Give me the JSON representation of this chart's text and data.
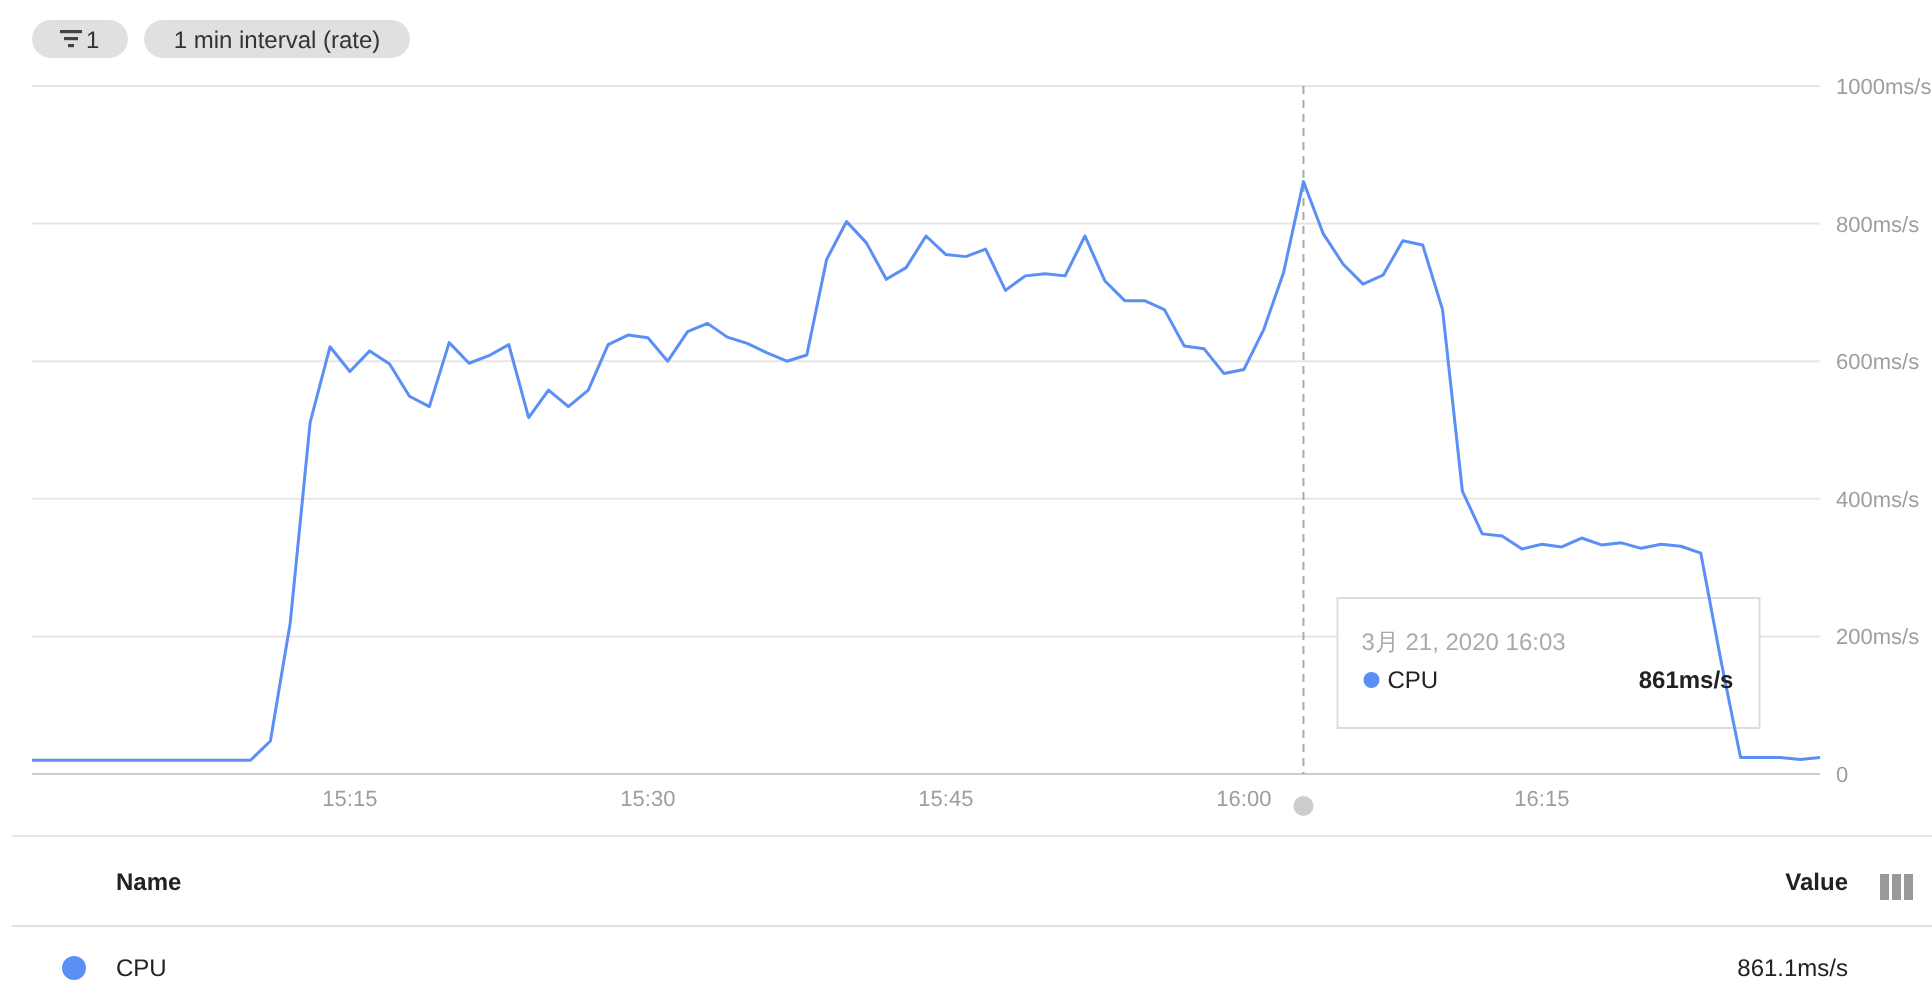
{
  "chart_data": {
    "type": "line",
    "x": [
      "2020-03-21T14:59",
      "2020-03-21T15:00",
      "2020-03-21T15:01",
      "2020-03-21T15:02",
      "2020-03-21T15:03",
      "2020-03-21T15:04",
      "2020-03-21T15:05",
      "2020-03-21T15:06",
      "2020-03-21T15:07",
      "2020-03-21T15:08",
      "2020-03-21T15:09",
      "2020-03-21T15:10",
      "2020-03-21T15:11",
      "2020-03-21T15:12",
      "2020-03-21T15:13",
      "2020-03-21T15:14",
      "2020-03-21T15:15",
      "2020-03-21T15:16",
      "2020-03-21T15:17",
      "2020-03-21T15:18",
      "2020-03-21T15:19",
      "2020-03-21T15:20",
      "2020-03-21T15:21",
      "2020-03-21T15:22",
      "2020-03-21T15:23",
      "2020-03-21T15:24",
      "2020-03-21T15:25",
      "2020-03-21T15:26",
      "2020-03-21T15:27",
      "2020-03-21T15:28",
      "2020-03-21T15:29",
      "2020-03-21T15:30",
      "2020-03-21T15:31",
      "2020-03-21T15:32",
      "2020-03-21T15:33",
      "2020-03-21T15:34",
      "2020-03-21T15:35",
      "2020-03-21T15:36",
      "2020-03-21T15:37",
      "2020-03-21T15:38",
      "2020-03-21T15:39",
      "2020-03-21T15:40",
      "2020-03-21T15:41",
      "2020-03-21T15:42",
      "2020-03-21T15:43",
      "2020-03-21T15:44",
      "2020-03-21T15:45",
      "2020-03-21T15:46",
      "2020-03-21T15:47",
      "2020-03-21T15:48",
      "2020-03-21T15:49",
      "2020-03-21T15:50",
      "2020-03-21T15:51",
      "2020-03-21T15:52",
      "2020-03-21T15:53",
      "2020-03-21T15:54",
      "2020-03-21T15:55",
      "2020-03-21T15:56",
      "2020-03-21T15:57",
      "2020-03-21T15:58",
      "2020-03-21T15:59",
      "2020-03-21T16:00",
      "2020-03-21T16:01",
      "2020-03-21T16:02",
      "2020-03-21T16:03",
      "2020-03-21T16:04",
      "2020-03-21T16:05",
      "2020-03-21T16:06",
      "2020-03-21T16:07",
      "2020-03-21T16:08",
      "2020-03-21T16:09",
      "2020-03-21T16:10",
      "2020-03-21T16:11",
      "2020-03-21T16:12",
      "2020-03-21T16:13",
      "2020-03-21T16:14",
      "2020-03-21T16:15",
      "2020-03-21T16:16",
      "2020-03-21T16:17",
      "2020-03-21T16:18",
      "2020-03-21T16:19",
      "2020-03-21T16:20",
      "2020-03-21T16:21",
      "2020-03-21T16:22",
      "2020-03-21T16:23",
      "2020-03-21T16:24",
      "2020-03-21T16:25",
      "2020-03-21T16:26",
      "2020-03-21T16:27",
      "2020-03-21T16:28",
      "2020-03-21T16:29"
    ],
    "series": [
      {
        "name": "CPU",
        "color": "#5b8ff5",
        "values": [
          20,
          20,
          20,
          20,
          20,
          20,
          20,
          20,
          20,
          20,
          20,
          20,
          48,
          220,
          511,
          621,
          585,
          615,
          596,
          549,
          534,
          627,
          597,
          608,
          624,
          518,
          558,
          534,
          558,
          624,
          638,
          634,
          600,
          643,
          655,
          635,
          626,
          612,
          600,
          609,
          748,
          803,
          772,
          719,
          736,
          782,
          755,
          752,
          763,
          703,
          724,
          727,
          724,
          782,
          717,
          688,
          688,
          675,
          622,
          618,
          582,
          588,
          646,
          729,
          861,
          785,
          741,
          712,
          725,
          775,
          769,
          675,
          411,
          349,
          346,
          327,
          334,
          330,
          343,
          333,
          336,
          328,
          334,
          331,
          321,
          167,
          24,
          24,
          24,
          21,
          24
        ]
      }
    ],
    "xlim": [
      "2020-03-21T14:59",
      "2020-03-21T16:29"
    ],
    "xticks": [
      {
        "value": "2020-03-21T15:15",
        "label": "15:15"
      },
      {
        "value": "2020-03-21T15:30",
        "label": "15:30"
      },
      {
        "value": "2020-03-21T15:45",
        "label": "15:45"
      },
      {
        "value": "2020-03-21T16:00",
        "label": "16:00"
      },
      {
        "value": "2020-03-21T16:15",
        "label": "16:15"
      }
    ],
    "ylim": [
      0,
      1000
    ],
    "yticks": [
      0,
      {
        "value": 200,
        "label": "200ms/s"
      },
      {
        "value": 400,
        "label": "400ms/s"
      },
      {
        "value": 600,
        "label": "600ms/s"
      },
      {
        "value": 800,
        "label": "800ms/s"
      },
      {
        "value": 1000,
        "label": "1000ms/s"
      }
    ],
    "grid": "y",
    "legend": "bottom",
    "marker": "none",
    "line_style": "solid",
    "ref_lines": [
      {
        "axis": "x",
        "value": "2020-03-21T16:03",
        "color": "#aaaaaa",
        "line_style": "dashed"
      }
    ],
    "annotations": [
      "1",
      "1 min interval (rate)",
      "3月 21, 2020 16:03",
      "CPU",
      "861ms/s",
      "Name",
      "Value",
      "861.1ms/s"
    ]
  }
}
